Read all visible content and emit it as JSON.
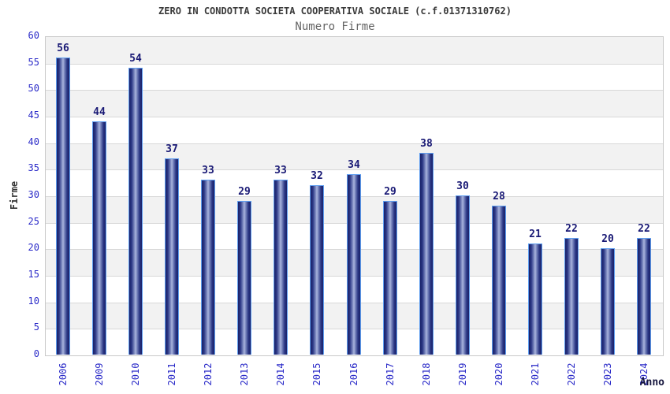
{
  "chart_data": {
    "type": "bar",
    "title": "ZERO IN CONDOTTA SOCIETA COOPERATIVA SOCIALE (c.f.01371310762)",
    "subtitle": "Numero Firme",
    "xlabel": "Anno",
    "ylabel": "Firme",
    "categories": [
      "2006",
      "2009",
      "2010",
      "2011",
      "2012",
      "2013",
      "2014",
      "2015",
      "2016",
      "2017",
      "2018",
      "2019",
      "2020",
      "2021",
      "2022",
      "2023",
      "2024"
    ],
    "values": [
      56,
      44,
      54,
      37,
      33,
      29,
      33,
      32,
      34,
      29,
      38,
      30,
      28,
      21,
      22,
      20,
      22
    ],
    "ylim": [
      0,
      60
    ],
    "ytick_step": 5,
    "grid": true,
    "legend": "none",
    "band_colors": [
      "#ffffff",
      "#f2f2f2"
    ],
    "colors": {
      "tick_label": "#2a2ac8",
      "value_label": "#191975",
      "bar_border": "#5f9ef0",
      "bar_dark": "#1a2168",
      "bar_light": "#abb5de",
      "gridline": "#d8d8d8",
      "plot_border": "#c9c9c9",
      "title": "#3a3a3a",
      "subtitle": "#646464"
    }
  }
}
